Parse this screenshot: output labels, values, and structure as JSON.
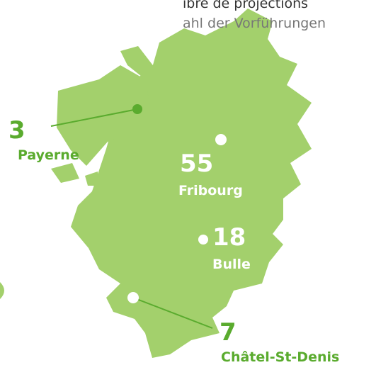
{
  "header": {
    "title": "ibre de projections",
    "subtitle": "ahl der Vorführungen"
  },
  "locations": [
    {
      "name": "Payerne",
      "count": "3"
    },
    {
      "name": "Fribourg",
      "count": "55"
    },
    {
      "name": "Bulle",
      "count": "18"
    },
    {
      "name": "Châtel-St-Denis",
      "count": "7"
    }
  ]
}
